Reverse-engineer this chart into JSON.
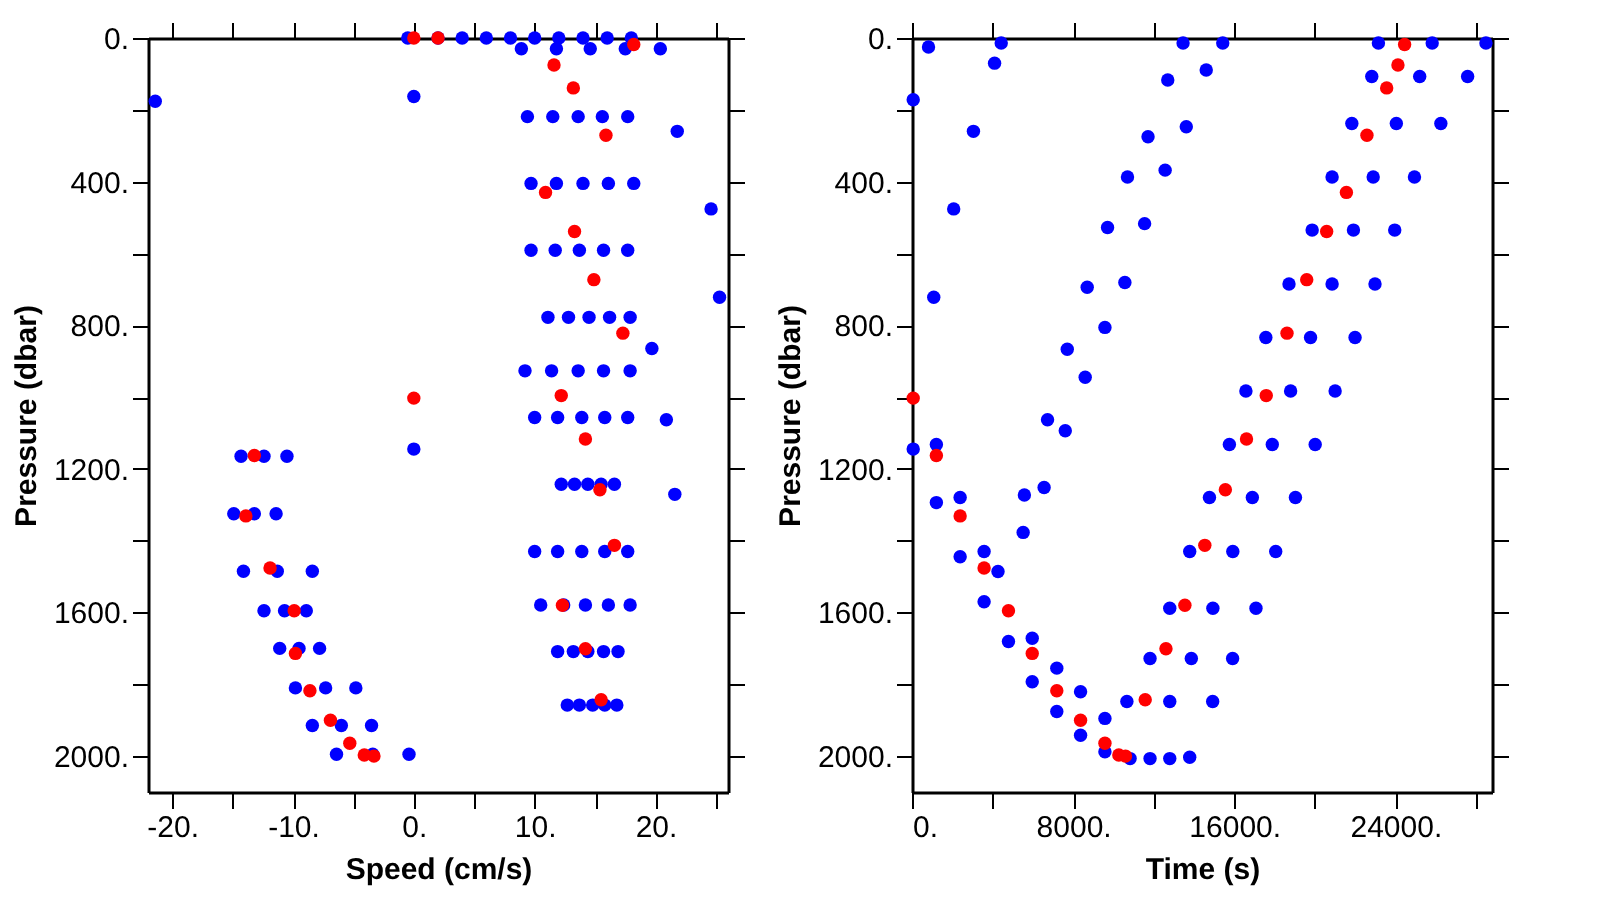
{
  "chart_data": [
    {
      "type": "scatter",
      "xlabel": "Speed (cm/s)",
      "ylabel": "Pressure (dbar)",
      "xlim": [
        -22,
        26
      ],
      "ylim": [
        2100,
        0
      ],
      "grid": false,
      "marker": "circle",
      "xticks": [
        {
          "value": -20,
          "label": "-20."
        },
        {
          "value": -15,
          "label": null
        },
        {
          "value": -10,
          "label": "-10."
        },
        {
          "value": -5,
          "label": null
        },
        {
          "value": 0,
          "label": "0."
        },
        {
          "value": 5,
          "label": null
        },
        {
          "value": 10,
          "label": "10."
        },
        {
          "value": 15,
          "label": null
        },
        {
          "value": 20,
          "label": "20."
        },
        {
          "value": 25,
          "label": null
        }
      ],
      "yticks": [
        {
          "value": 0,
          "label": "0."
        },
        {
          "value": 200,
          "label": null
        },
        {
          "value": 400,
          "label": "400."
        },
        {
          "value": 600,
          "label": null
        },
        {
          "value": 800,
          "label": "800."
        },
        {
          "value": 1000,
          "label": null
        },
        {
          "value": 1200,
          "label": "1200."
        },
        {
          "value": 1400,
          "label": null
        },
        {
          "value": 1600,
          "label": "1600."
        },
        {
          "value": 1800,
          "label": null
        },
        {
          "value": 2000,
          "label": "2000."
        }
      ],
      "series": [
        {
          "color": "#0000ff",
          "x": [
            -21.4,
            0,
            0,
            21.8,
            24.6,
            25.3,
            19.7,
            20.9,
            21.6,
            -0.5,
            2,
            4,
            6,
            8,
            10,
            12,
            14,
            16,
            18,
            8.9,
            11.8,
            14.6,
            17.5,
            20.4,
            9.4,
            11.5,
            13.6,
            15.6,
            17.7,
            9.7,
            11.8,
            14.0,
            16.1,
            18.2,
            9.7,
            11.7,
            13.7,
            15.7,
            17.7,
            11.1,
            12.8,
            14.5,
            16.2,
            17.9,
            9.2,
            11.4,
            13.6,
            15.7,
            17.9,
            10.0,
            11.9,
            13.9,
            15.8,
            17.7,
            12.2,
            13.3,
            14.4,
            15.5,
            16.6,
            10.0,
            11.9,
            13.9,
            15.8,
            17.7,
            10.5,
            12.4,
            14.2,
            16.1,
            17.9,
            11.9,
            13.2,
            14.4,
            15.7,
            16.9,
            12.7,
            13.7,
            14.8,
            15.8,
            16.8,
            -14.3,
            -12.4,
            -10.5,
            -14.9,
            -13.2,
            -11.4,
            -14.1,
            -11.3,
            -8.4,
            -12.4,
            -10.7,
            -8.9,
            -11.1,
            -9.5,
            -7.8,
            -9.8,
            -7.3,
            -4.8,
            -8.4,
            -6.0,
            -3.5,
            -6.4,
            -3.4,
            -0.4
          ],
          "values": [
            176,
            163,
            1145,
            260,
            476,
            722,
            865,
            1063,
            1271,
            0,
            0,
            0,
            0,
            0,
            0,
            0,
            0,
            0,
            0,
            30,
            30,
            30,
            30,
            30,
            219,
            219,
            219,
            219,
            219,
            405,
            405,
            405,
            405,
            405,
            591,
            591,
            591,
            591,
            591,
            778,
            778,
            778,
            778,
            778,
            927,
            927,
            927,
            927,
            927,
            1057,
            1057,
            1057,
            1057,
            1057,
            1243,
            1243,
            1243,
            1243,
            1243,
            1430,
            1430,
            1430,
            1430,
            1430,
            1579,
            1579,
            1579,
            1579,
            1579,
            1709,
            1709,
            1709,
            1709,
            1709,
            1858,
            1858,
            1858,
            1858,
            1858,
            1165,
            1165,
            1165,
            1325,
            1325,
            1325,
            1485,
            1485,
            1485,
            1595,
            1595,
            1595,
            1700,
            1700,
            1700,
            1810,
            1810,
            1810,
            1915,
            1915,
            1915,
            1995,
            1995,
            1995
          ]
        },
        {
          "color": "#ff0000",
          "x": [
            0,
            2.0,
            18.2,
            11.6,
            13.2,
            15.9,
            10.9,
            13.3,
            14.9,
            17.3,
            12.2,
            0,
            14.2,
            -13.2,
            15.4,
            -13.9,
            16.6,
            -11.9,
            12.3,
            -9.9,
            -9.8,
            14.2,
            -8.6,
            15.5,
            -6.9,
            -5.3,
            -4.1,
            -3.3
          ],
          "values": [
            0,
            0,
            18,
            75,
            139,
            271,
            430,
            539,
            673,
            822,
            996,
            1003,
            1117,
            1163,
            1258,
            1331,
            1413,
            1476,
            1580,
            1595,
            1714,
            1701,
            1818,
            1843,
            1900,
            1964,
            1997,
            2000
          ]
        }
      ]
    },
    {
      "type": "scatter",
      "xlabel": "Time (s)",
      "ylabel": "Pressure (dbar)",
      "xlim": [
        0,
        28800
      ],
      "ylim": [
        2100,
        0
      ],
      "grid": false,
      "marker": "circle",
      "xticks": [
        {
          "value": 0,
          "label": "0."
        },
        {
          "value": 4000,
          "label": null
        },
        {
          "value": 8000,
          "label": "8000."
        },
        {
          "value": 12000,
          "label": null
        },
        {
          "value": 16000,
          "label": "16000."
        },
        {
          "value": 20000,
          "label": null
        },
        {
          "value": 24000,
          "label": "24000."
        },
        {
          "value": 28000,
          "label": null
        }
      ],
      "yticks": [
        {
          "value": 0,
          "label": "0."
        },
        {
          "value": 200,
          "label": null
        },
        {
          "value": 400,
          "label": "400."
        },
        {
          "value": 600,
          "label": null
        },
        {
          "value": 800,
          "label": "800."
        },
        {
          "value": 1000,
          "label": null
        },
        {
          "value": 1200,
          "label": "1200."
        },
        {
          "value": 1400,
          "label": null
        },
        {
          "value": 1600,
          "label": "1600."
        },
        {
          "value": 1800,
          "label": null
        },
        {
          "value": 2000,
          "label": "2000."
        }
      ],
      "series": [
        {
          "color": "#0000ff",
          "x": [
            820,
            4430,
            4100,
            60,
            3050,
            2070,
            1080,
            60,
            13460,
            15430,
            14610,
            12700,
            13620,
            11720,
            12570,
            10700,
            11550,
            9710,
            10570,
            8700,
            9580,
            7710,
            8600,
            6730,
            7610,
            6560,
            5580,
            5520,
            1210,
            1210,
            2390,
            2390,
            3580,
            3580,
            4270,
            4790,
            5970,
            5970,
            7190,
            7190,
            8370,
            8370,
            9580,
            9580,
            10830,
            11820,
            12800,
            13790,
            10670,
            12800,
            14930,
            11820,
            13870,
            15920,
            12800,
            14940,
            17080,
            13790,
            15930,
            18060,
            14770,
            16900,
            19040,
            15760,
            17890,
            20020,
            16580,
            18800,
            21010,
            17570,
            19790,
            22000,
            18720,
            20860,
            22990,
            19870,
            21920,
            23970,
            20860,
            22900,
            24950,
            21840,
            24050,
            26260,
            22830,
            25210,
            27590,
            23160,
            25830,
            28500
          ],
          "values": [
            25,
            14,
            70,
            172,
            260,
            476,
            722,
            1145,
            14,
            14,
            89,
            117,
            247,
            275,
            368,
            387,
            517,
            528,
            681,
            694,
            806,
            867,
            945,
            1063,
            1094,
            1252,
            1273,
            1377,
            1132,
            1294,
            1280,
            1445,
            1430,
            1570,
            1486,
            1681,
            1672,
            1793,
            1755,
            1876,
            1821,
            1942,
            1895,
            1988,
            2007,
            2007,
            2007,
            2003,
            1848,
            1848,
            1848,
            1728,
            1728,
            1728,
            1588,
            1588,
            1588,
            1430,
            1430,
            1430,
            1280,
            1280,
            1280,
            1132,
            1132,
            1132,
            983,
            983,
            983,
            834,
            834,
            834,
            685,
            685,
            685,
            535,
            535,
            535,
            387,
            387,
            387,
            238,
            238,
            238,
            107,
            107,
            107,
            14,
            14,
            14
          ]
        },
        {
          "color": "#ff0000",
          "x": [
            24460,
            24130,
            23570,
            22590,
            21570,
            20590,
            19600,
            18620,
            17590,
            60,
            16610,
            1210,
            15560,
            2390,
            14540,
            3580,
            13550,
            4790,
            5970,
            12610,
            7190,
            11580,
            8370,
            9580,
            10270,
            10600
          ],
          "values": [
            18,
            75,
            139,
            271,
            430,
            539,
            673,
            822,
            996,
            1003,
            1117,
            1163,
            1258,
            1331,
            1413,
            1476,
            1580,
            1595,
            1714,
            1701,
            1818,
            1843,
            1900,
            1964,
            1997,
            2000
          ]
        }
      ]
    }
  ]
}
